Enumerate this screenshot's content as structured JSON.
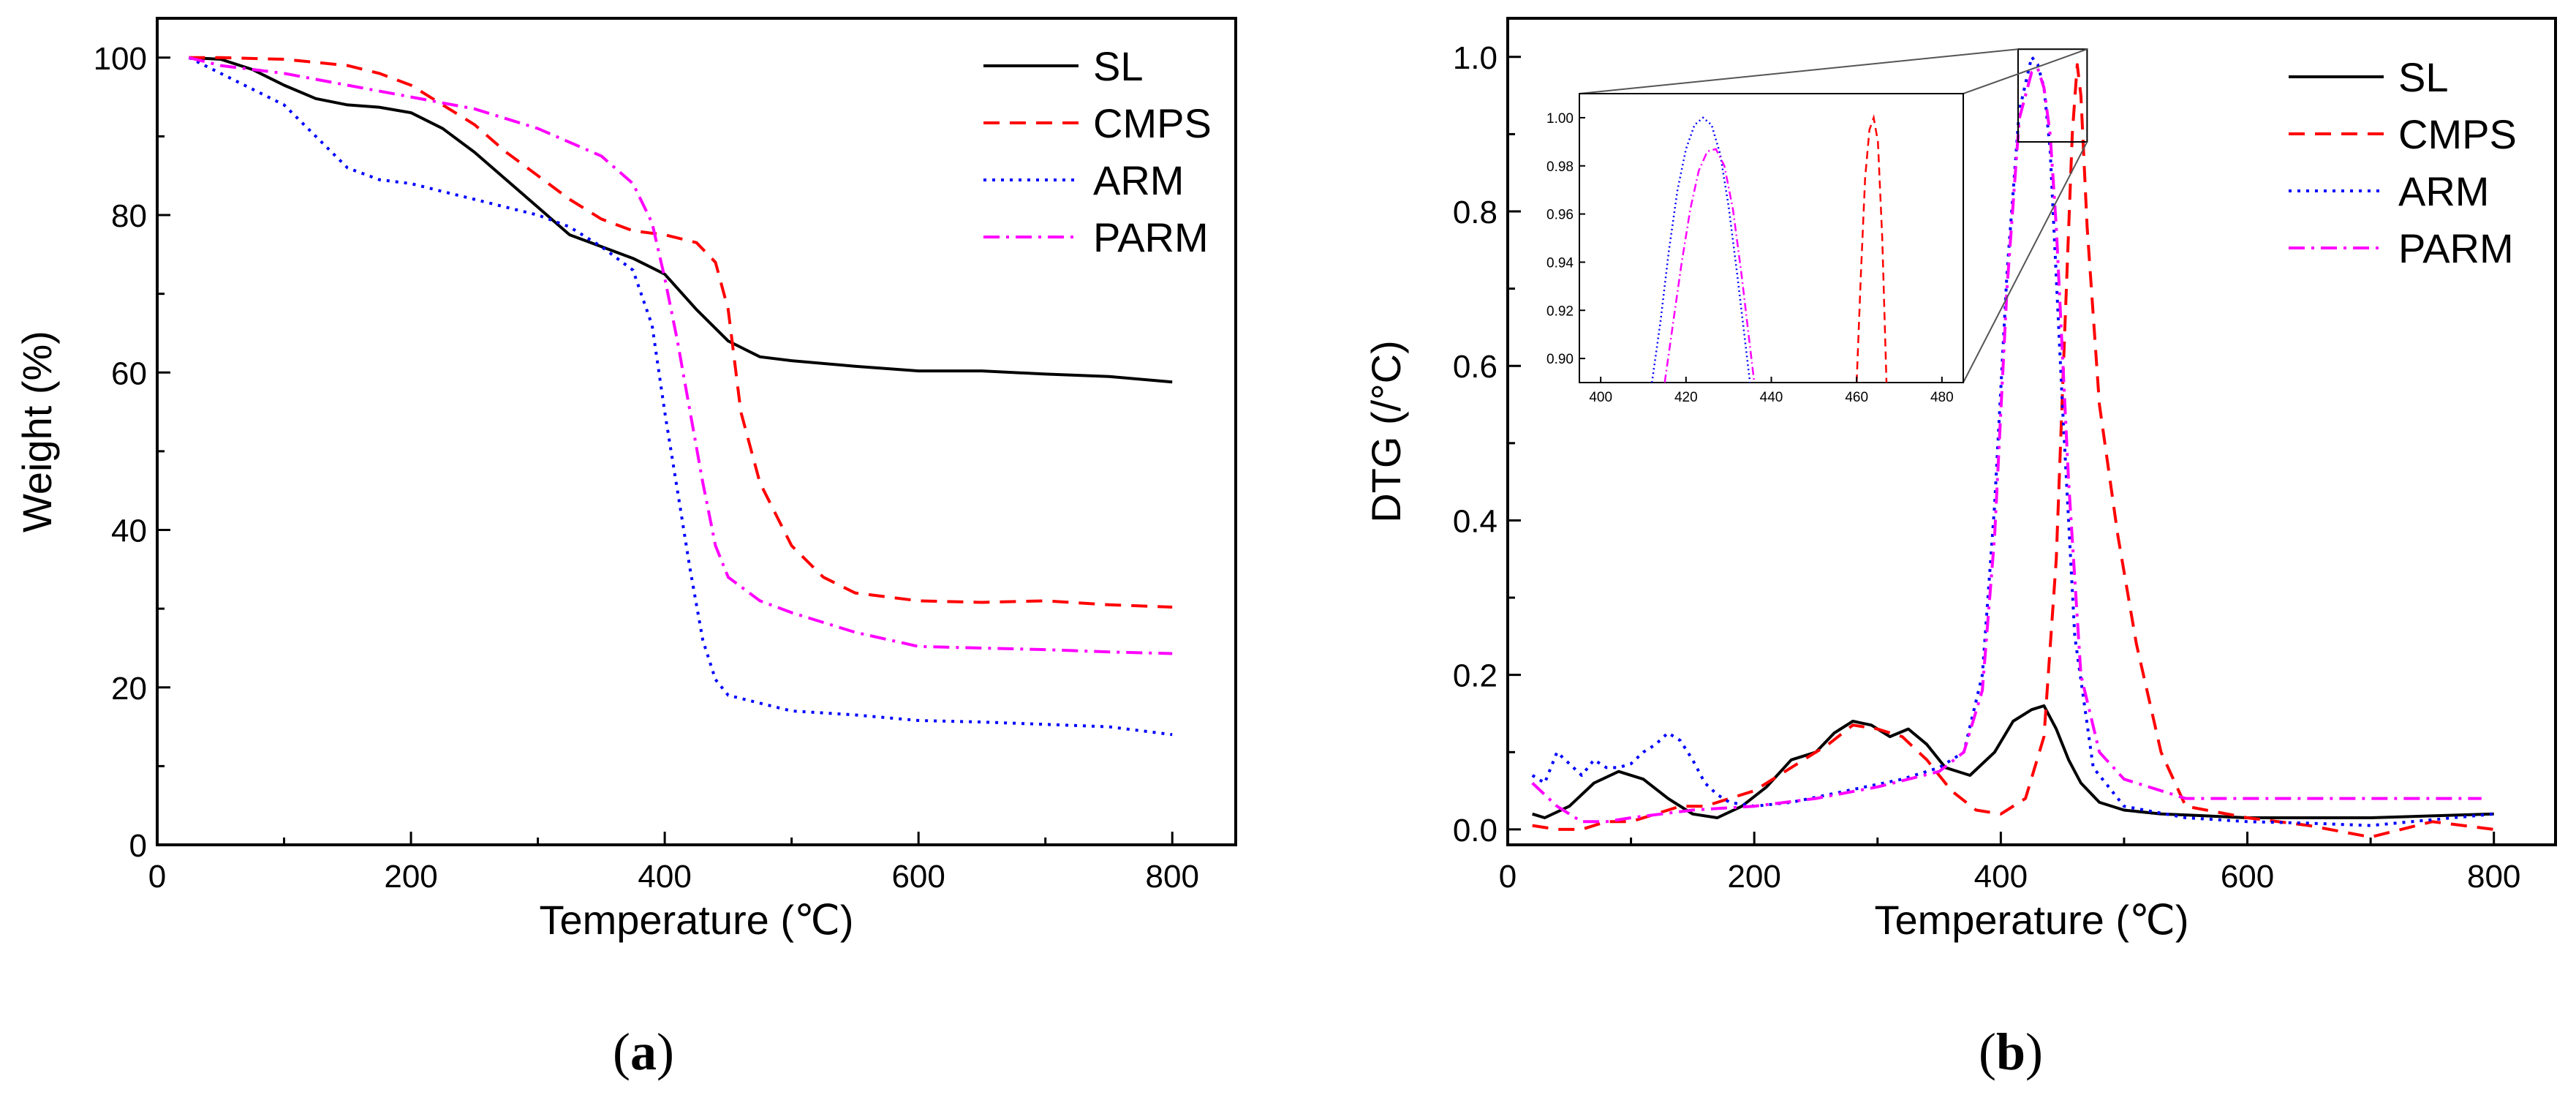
{
  "panels": {
    "a_label": "a",
    "b_label": "b"
  },
  "chart_data": [
    {
      "type": "line",
      "panel": "a",
      "xlabel": "Temperature (℃)",
      "ylabel": "Weight (%)",
      "xlim": [
        0,
        850
      ],
      "ylim": [
        0,
        105
      ],
      "xticks": [
        0,
        200,
        400,
        600,
        800
      ],
      "yticks": [
        0,
        20,
        40,
        60,
        80,
        100
      ],
      "legend": "top-right",
      "series": [
        {
          "name": "SL",
          "color": "#000000",
          "dash": "solid",
          "x": [
            25,
            50,
            75,
            100,
            125,
            150,
            175,
            200,
            225,
            250,
            275,
            300,
            325,
            350,
            375,
            400,
            425,
            450,
            475,
            500,
            550,
            600,
            650,
            700,
            750,
            800
          ],
          "y": [
            100,
            99.8,
            98.5,
            96.5,
            94.8,
            94,
            93.7,
            93,
            91,
            88,
            84.5,
            81,
            77.5,
            76,
            74.5,
            72.5,
            68,
            64,
            62,
            61.5,
            60.8,
            60.2,
            60.2,
            59.8,
            59.5,
            58.8
          ]
        },
        {
          "name": "CMPS",
          "color": "#ff0000",
          "dash": "dashed",
          "x": [
            25,
            50,
            100,
            150,
            175,
            200,
            225,
            250,
            275,
            300,
            325,
            350,
            375,
            400,
            425,
            440,
            450,
            460,
            475,
            500,
            525,
            550,
            600,
            650,
            700,
            750,
            800
          ],
          "y": [
            100,
            100,
            99.8,
            99,
            98,
            96.5,
            94,
            91.5,
            88,
            85,
            82,
            79.5,
            78,
            77.5,
            76.5,
            74,
            68,
            55,
            46,
            38,
            34,
            32,
            31,
            30.8,
            31,
            30.5,
            30.2
          ]
        },
        {
          "name": "ARM",
          "color": "#0000ff",
          "dash": "dotted",
          "x": [
            25,
            50,
            100,
            125,
            150,
            175,
            200,
            225,
            250,
            275,
            300,
            325,
            350,
            375,
            390,
            400,
            410,
            420,
            430,
            440,
            450,
            475,
            500,
            550,
            600,
            650,
            700,
            750,
            800
          ],
          "y": [
            100,
            98,
            94,
            90,
            86,
            84.5,
            84,
            83,
            82,
            81,
            80,
            78.5,
            76,
            73,
            66,
            55,
            45,
            35,
            26,
            21,
            19,
            18,
            17,
            16.5,
            15.8,
            15.6,
            15.3,
            15,
            14
          ]
        },
        {
          "name": "PARM",
          "color": "#ff00ff",
          "dash": "dashdot",
          "x": [
            25,
            50,
            100,
            150,
            200,
            250,
            300,
            350,
            375,
            390,
            400,
            410,
            420,
            430,
            440,
            450,
            475,
            500,
            550,
            600,
            650,
            700,
            750,
            800
          ],
          "y": [
            100,
            99,
            98,
            96.5,
            95,
            93.5,
            91,
            87.5,
            84,
            79,
            72,
            64,
            55,
            46,
            38,
            34,
            31,
            29.5,
            27,
            25.2,
            25,
            24.8,
            24.5,
            24.3
          ]
        }
      ]
    },
    {
      "type": "line",
      "panel": "b",
      "xlabel": "Temperature (℃)",
      "ylabel": "DTG (/°C)",
      "xlim": [
        0,
        850
      ],
      "ylim": [
        -0.02,
        1.05
      ],
      "xticks": [
        0,
        200,
        400,
        600,
        800
      ],
      "yticks": [
        0.0,
        0.2,
        0.4,
        0.6,
        0.8,
        1.0
      ],
      "legend": "top-right",
      "series": [
        {
          "name": "SL",
          "color": "#000000",
          "dash": "solid",
          "x": [
            20,
            30,
            50,
            70,
            90,
            110,
            130,
            150,
            170,
            190,
            210,
            230,
            250,
            265,
            280,
            295,
            310,
            325,
            340,
            355,
            375,
            395,
            410,
            425,
            435,
            445,
            455,
            465,
            480,
            500,
            530,
            560,
            600,
            700,
            800
          ],
          "y": [
            0.02,
            0.015,
            0.03,
            0.06,
            0.075,
            0.065,
            0.04,
            0.02,
            0.015,
            0.03,
            0.055,
            0.09,
            0.1,
            0.125,
            0.14,
            0.135,
            0.12,
            0.13,
            0.11,
            0.08,
            0.07,
            0.1,
            0.14,
            0.155,
            0.16,
            0.13,
            0.09,
            0.06,
            0.035,
            0.025,
            0.02,
            0.018,
            0.015,
            0.015,
            0.02
          ]
        },
        {
          "name": "CMPS",
          "color": "#ff0000",
          "dash": "dashed",
          "x": [
            20,
            40,
            60,
            80,
            100,
            120,
            140,
            160,
            180,
            200,
            220,
            240,
            260,
            280,
            300,
            320,
            340,
            360,
            380,
            400,
            420,
            435,
            445,
            452,
            458,
            462,
            465,
            470,
            480,
            495,
            510,
            530,
            550,
            600,
            650,
            700,
            750,
            800
          ],
          "y": [
            0.005,
            0.0,
            0.0,
            0.01,
            0.01,
            0.02,
            0.03,
            0.03,
            0.04,
            0.05,
            0.07,
            0.09,
            0.11,
            0.135,
            0.13,
            0.12,
            0.09,
            0.05,
            0.025,
            0.02,
            0.04,
            0.12,
            0.35,
            0.65,
            0.9,
            0.99,
            0.95,
            0.78,
            0.55,
            0.38,
            0.24,
            0.1,
            0.03,
            0.015,
            0.005,
            -0.01,
            0.01,
            0.0
          ]
        },
        {
          "name": "ARM",
          "color": "#0000ff",
          "dash": "dotted",
          "x": [
            20,
            30,
            40,
            50,
            60,
            70,
            80,
            90,
            100,
            110,
            120,
            130,
            140,
            150,
            160,
            170,
            180,
            200,
            230,
            260,
            290,
            320,
            350,
            370,
            385,
            395,
            405,
            415,
            425,
            430,
            435,
            440,
            450,
            460,
            475,
            500,
            550,
            600,
            650,
            700,
            800
          ],
          "y": [
            0.07,
            0.06,
            0.1,
            0.085,
            0.07,
            0.09,
            0.08,
            0.08,
            0.085,
            0.1,
            0.11,
            0.125,
            0.115,
            0.09,
            0.06,
            0.045,
            0.035,
            0.03,
            0.035,
            0.045,
            0.055,
            0.065,
            0.08,
            0.1,
            0.2,
            0.42,
            0.72,
            0.93,
            1.0,
            0.99,
            0.96,
            0.88,
            0.55,
            0.25,
            0.08,
            0.03,
            0.015,
            0.01,
            0.008,
            0.005,
            0.02
          ]
        },
        {
          "name": "PARM",
          "color": "#ff00ff",
          "dash": "dashdot",
          "x": [
            20,
            40,
            60,
            80,
            100,
            150,
            200,
            250,
            300,
            350,
            370,
            385,
            395,
            405,
            415,
            425,
            430,
            435,
            440,
            445,
            455,
            465,
            480,
            500,
            550,
            600,
            700,
            790
          ],
          "y": [
            0.06,
            0.03,
            0.01,
            0.01,
            0.015,
            0.025,
            0.03,
            0.04,
            0.055,
            0.075,
            0.1,
            0.18,
            0.38,
            0.7,
            0.92,
            0.98,
            0.985,
            0.96,
            0.9,
            0.78,
            0.45,
            0.2,
            0.1,
            0.065,
            0.04,
            0.04,
            0.04,
            0.04
          ]
        }
      ]
    },
    {
      "type": "line",
      "panel": "b-inset",
      "xlim": [
        395,
        485
      ],
      "ylim": [
        0.89,
        1.01
      ],
      "xticks": [
        400,
        420,
        440,
        460,
        480
      ],
      "yticks": [
        0.9,
        0.92,
        0.94,
        0.96,
        0.98,
        1.0
      ],
      "ytick_labels": [
        "0.90",
        "0.92",
        "0.94",
        "0.96",
        "0.98",
        "1.00"
      ],
      "zoom_region": {
        "x": [
          414,
          470
        ],
        "y": [
          0.89,
          1.01
        ]
      },
      "series": [
        {
          "name": "ARM",
          "color": "#0000ff",
          "dash": "dotted",
          "x": [
            412,
            414,
            416,
            418,
            420,
            422,
            424,
            426,
            428,
            430,
            432,
            434,
            435
          ],
          "y": [
            0.89,
            0.915,
            0.945,
            0.97,
            0.987,
            0.997,
            1.0,
            0.997,
            0.985,
            0.963,
            0.935,
            0.905,
            0.89
          ]
        },
        {
          "name": "PARM",
          "color": "#ff00ff",
          "dash": "dashdot",
          "x": [
            415,
            417,
            419,
            421,
            423,
            425,
            427,
            429,
            431,
            433,
            435,
            436
          ],
          "y": [
            0.89,
            0.915,
            0.94,
            0.962,
            0.978,
            0.986,
            0.987,
            0.98,
            0.962,
            0.935,
            0.905,
            0.89
          ]
        },
        {
          "name": "CMPS",
          "color": "#ff0000",
          "dash": "dashed",
          "x": [
            460,
            461,
            462,
            463,
            464,
            465,
            466,
            467
          ],
          "y": [
            0.89,
            0.935,
            0.975,
            0.995,
            1.0,
            0.99,
            0.95,
            0.89
          ]
        }
      ]
    }
  ]
}
